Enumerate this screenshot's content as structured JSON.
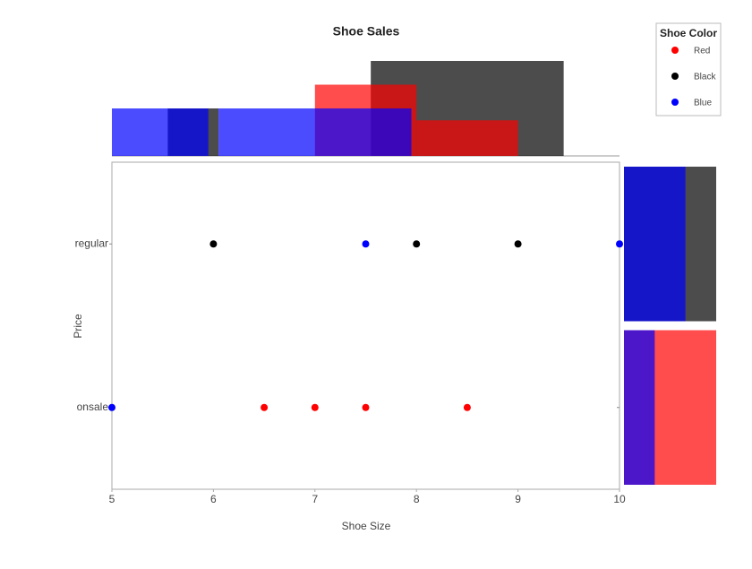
{
  "chart_data": {
    "type": "scatter",
    "title": "Shoe Sales",
    "x_label": "Shoe Size",
    "y_label": "Price",
    "xlim": [
      5,
      10
    ],
    "xticks": [
      5,
      6,
      7,
      8,
      9,
      10
    ],
    "y_categories": [
      "onsale",
      "regular"
    ],
    "legend_title": "Shoe Color",
    "legend_position": "top-right",
    "opacity": 0.7,
    "hist_ylim": [
      0,
      2
    ],
    "price_xlim": [
      0,
      3
    ],
    "series": [
      {
        "name": "Red",
        "color": "#ff0000",
        "x": [
          6.5,
          7,
          7.5,
          8.5
        ],
        "y": [
          "onsale",
          "onsale",
          "onsale",
          "onsale"
        ],
        "hist_bins": [
          7,
          8,
          9
        ],
        "hist_counts": [
          1.5,
          0.75
        ],
        "price_counts": [
          3,
          0
        ]
      },
      {
        "name": "Black",
        "color": "#000000",
        "x": [
          6,
          8,
          9
        ],
        "y": [
          "regular",
          "regular",
          "regular"
        ],
        "hist_bins": [
          5.55,
          6.05,
          7.55,
          9.45
        ],
        "hist_counts": [
          1,
          0,
          2
        ],
        "price_counts": [
          0,
          3
        ]
      },
      {
        "name": "Blue",
        "color": "#0000ff",
        "x": [
          5,
          7.5,
          10
        ],
        "y": [
          "onsale",
          "regular",
          "regular"
        ],
        "hist_bins": [
          5,
          5.95,
          6.05,
          7.95
        ],
        "hist_counts": [
          1,
          0,
          1
        ],
        "price_counts": [
          1,
          2
        ]
      }
    ]
  }
}
